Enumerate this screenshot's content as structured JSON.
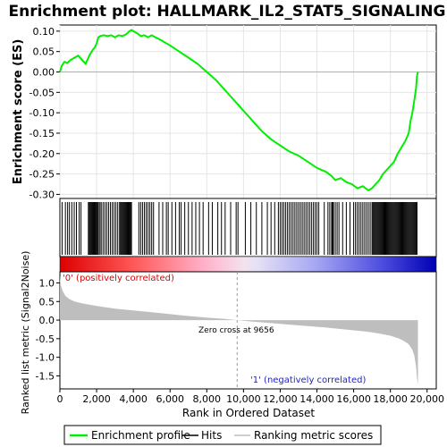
{
  "title": "Enrichment plot: HALLMARK_IL2_STAT5_SIGNALING",
  "colors": {
    "es_line": "#00ee00",
    "hits": "#000000",
    "metric_fill": "#bebebe",
    "pos_label": "#e00000",
    "neg_label": "#2222cc",
    "band_red": "#ff0000",
    "band_blue": "#0000cc"
  },
  "chart_data": {
    "type": "line",
    "title": "Enrichment plot: HALLMARK_IL2_STAT5_SIGNALING",
    "xlabel": "Rank in Ordered Dataset",
    "xlim": [
      0,
      20500
    ],
    "x_ticks": [
      "0",
      "2,000",
      "4,000",
      "6,000",
      "8,000",
      "10,000",
      "12,000",
      "14,000",
      "16,000",
      "18,000",
      "20,000"
    ],
    "x_tick_values": [
      0,
      2000,
      4000,
      6000,
      8000,
      10000,
      12000,
      14000,
      16000,
      18000,
      20000
    ],
    "n_genes": 19500,
    "es_panel": {
      "ylabel": "Enrichment score (ES)",
      "ylim": [
        -0.31,
        0.115
      ],
      "y_ticks": [
        "0.10",
        "0.05",
        "0.00",
        "-0.05",
        "-0.10",
        "-0.15",
        "-0.20",
        "-0.25",
        "-0.30"
      ],
      "y_tick_values": [
        0.1,
        0.05,
        0.0,
        -0.05,
        -0.1,
        -0.15,
        -0.2,
        -0.25,
        -0.3
      ],
      "grid": true,
      "series": [
        {
          "name": "Enrichment profile",
          "x": [
            0,
            100,
            250,
            400,
            600,
            800,
            1000,
            1200,
            1400,
            1600,
            1800,
            1900,
            2000,
            2100,
            2200,
            2400,
            2600,
            2800,
            3000,
            3200,
            3400,
            3600,
            3800,
            3900,
            4000,
            4200,
            4400,
            4600,
            4800,
            5000,
            5200,
            5500,
            6000,
            6500,
            7000,
            7500,
            8000,
            8500,
            9000,
            9500,
            10000,
            10500,
            11000,
            11500,
            12000,
            12500,
            13000,
            13500,
            14000,
            14500,
            14800,
            15000,
            15300,
            15600,
            15900,
            16200,
            16500,
            16800,
            17000,
            17200,
            17400,
            17600,
            17800,
            18000,
            18200,
            18400,
            18600,
            18800,
            19000,
            19100,
            19200,
            19300,
            19400,
            19450,
            19500
          ],
          "y": [
            0.0,
            0.015,
            0.025,
            0.022,
            0.03,
            0.035,
            0.04,
            0.03,
            0.02,
            0.04,
            0.055,
            0.06,
            0.07,
            0.085,
            0.088,
            0.09,
            0.088,
            0.09,
            0.085,
            0.09,
            0.088,
            0.092,
            0.1,
            0.103,
            0.1,
            0.095,
            0.088,
            0.09,
            0.085,
            0.09,
            0.085,
            0.078,
            0.065,
            0.05,
            0.035,
            0.02,
            0.0,
            -0.02,
            -0.045,
            -0.07,
            -0.095,
            -0.12,
            -0.145,
            -0.165,
            -0.18,
            -0.195,
            -0.205,
            -0.22,
            -0.235,
            -0.245,
            -0.255,
            -0.265,
            -0.26,
            -0.27,
            -0.275,
            -0.285,
            -0.28,
            -0.29,
            -0.285,
            -0.275,
            -0.265,
            -0.25,
            -0.24,
            -0.23,
            -0.22,
            -0.2,
            -0.185,
            -0.17,
            -0.15,
            -0.12,
            -0.1,
            -0.07,
            -0.04,
            -0.01,
            0.0
          ]
        }
      ]
    },
    "hits": {
      "name": "Hits",
      "positions": [
        120,
        300,
        420,
        520,
        650,
        780,
        900,
        1050,
        1150,
        1550,
        1600,
        1650,
        1700,
        1750,
        1800,
        1850,
        1900,
        1950,
        2000,
        2050,
        2100,
        2180,
        2250,
        2350,
        2450,
        2550,
        2650,
        2750,
        2850,
        2950,
        3050,
        3150,
        3250,
        3300,
        3350,
        3400,
        3450,
        3500,
        3550,
        3600,
        3650,
        3700,
        3750,
        3800,
        3850,
        3900,
        4300,
        4400,
        4500,
        4600,
        4700,
        4800,
        4900,
        5000,
        5100,
        5400,
        5600,
        5800,
        5900,
        6100,
        6300,
        6500,
        6600,
        6800,
        7000,
        7200,
        7400,
        7600,
        7800,
        8100,
        8300,
        8600,
        8800,
        9000,
        9300,
        9600,
        9700,
        10100,
        10400,
        10700,
        11000,
        11300,
        11500,
        11700,
        11900,
        12000,
        12100,
        12200,
        12300,
        12400,
        12500,
        12600,
        12700,
        12800,
        12900,
        13000,
        13100,
        13200,
        13300,
        13400,
        13500,
        13600,
        13700,
        13800,
        13900,
        14000,
        14100,
        14400,
        14600,
        14700,
        14800,
        14850,
        14900,
        15000,
        15100,
        15200,
        15400,
        15600,
        15800,
        16000,
        16100,
        16200,
        16300,
        16400,
        16500,
        16600,
        16700,
        16800,
        16900,
        17000,
        17050,
        17100,
        17150,
        17200,
        17250,
        17300,
        17350,
        17400,
        17450,
        17500,
        17550,
        17600,
        17650,
        17700,
        17750,
        17800,
        17850,
        17900,
        17950,
        18000,
        18050,
        18100,
        18150,
        18200,
        18250,
        18300,
        18350,
        18400,
        18450,
        18500,
        18550,
        18600,
        18650,
        18700,
        18750,
        18800,
        18850,
        18900,
        18950,
        19000,
        19050,
        19100,
        19150,
        19200,
        19250,
        19300,
        19350,
        19400,
        19450
      ]
    },
    "metric_panel": {
      "name": "Ranking metric scores",
      "ylabel": "Ranked list metric (Signal2Noise)",
      "ylim": [
        -1.85,
        1.3
      ],
      "y_ticks": [
        "1.0",
        "0.5",
        "0.0",
        "-0.5",
        "-1.0",
        "-1.5"
      ],
      "y_tick_values": [
        1.0,
        0.5,
        0.0,
        -0.5,
        -1.0,
        -1.5
      ],
      "x": [
        0,
        50,
        150,
        300,
        500,
        800,
        1200,
        2000,
        3000,
        4000,
        5000,
        6000,
        7000,
        8000,
        9000,
        9656,
        10500,
        11500,
        12500,
        13500,
        14500,
        15500,
        16500,
        17000,
        17500,
        18000,
        18500,
        18800,
        19000,
        19200,
        19300,
        19400,
        19450,
        19500
      ],
      "y": [
        1.2,
        0.95,
        0.78,
        0.65,
        0.57,
        0.5,
        0.45,
        0.38,
        0.31,
        0.26,
        0.21,
        0.16,
        0.11,
        0.07,
        0.03,
        0.0,
        -0.04,
        -0.08,
        -0.12,
        -0.16,
        -0.2,
        -0.25,
        -0.3,
        -0.33,
        -0.37,
        -0.42,
        -0.5,
        -0.58,
        -0.65,
        -0.8,
        -0.95,
        -1.25,
        -1.55,
        -1.75
      ],
      "zero_cross": 9656
    },
    "annotations": {
      "positive": "'0' (positively correlated)",
      "negative": "'1' (negatively correlated)",
      "zero_cross": "Zero cross at 9656"
    },
    "legend": {
      "placement": "bottom",
      "entries": [
        "Enrichment profile",
        "Hits",
        "Ranking metric scores"
      ]
    }
  }
}
